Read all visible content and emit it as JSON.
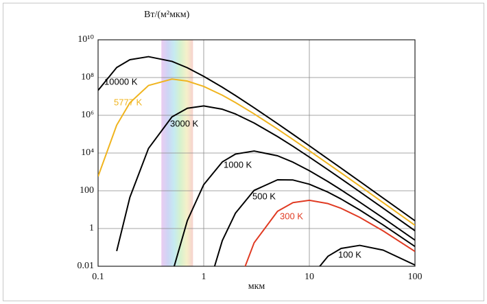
{
  "chart_data": {
    "type": "line",
    "ylabel": "Вт/(м²мкм)",
    "xlabel": "мкм",
    "x": [
      0.1,
      0.15,
      0.2,
      0.3,
      0.5,
      0.7,
      1,
      1.5,
      2,
      3,
      5,
      7,
      10,
      15,
      20,
      30,
      50,
      100
    ],
    "series": [
      {
        "name": "10000 K",
        "color": "#000000",
        "values": [
          21000000,
          340000000,
          880000000,
          1280000000,
          720000000,
          330000000,
          116000000,
          30600000,
          11100000,
          2500000,
          360000,
          98000,
          24200,
          4900,
          1570,
          314,
          41,
          2.58
        ]
      },
      {
        "name": "5777 K",
        "color": "#f0b41e",
        "values": [
          575,
          300000,
          4600000,
          38000000,
          83000000,
          65000000,
          33800000,
          11600000,
          4700000,
          1190000,
          186000,
          52000,
          13200,
          2730,
          882,
          178,
          23.5,
          1.48
        ]
      },
      {
        "name": "3000 K",
        "color": "#000000",
        "values": [
          null,
          0.064,
          45,
          17500,
          820000,
          2360000,
          3120000,
          2100000,
          1170000,
          390000,
          74600,
          22700,
          6080,
          1310,
          432,
          88.8,
          11.9,
          0.76
        ]
      },
      {
        "name": "1000 K",
        "color": "#000000",
        "values": [
          null,
          null,
          null,
          null,
          0.0038,
          2.65,
          211,
          3380,
          8800,
          12800,
          7160,
          3270,
          1160,
          306,
          111,
          25,
          3.6,
          0.242
        ]
      },
      {
        "name": "500 K",
        "color": "#000000",
        "values": [
          null,
          null,
          null,
          null,
          null,
          null,
          0.00012,
          0.23,
          6.6,
          105,
          381,
          372,
          223,
          84.9,
          36.4,
          9.6,
          1.54,
          0.112
        ]
      },
      {
        "name": "300 K",
        "color": "#e03a22",
        "values": [
          null,
          null,
          null,
          null,
          null,
          null,
          null,
          null,
          0.00045,
          0.175,
          8.2,
          23.6,
          31.2,
          21,
          11.7,
          3.9,
          0.746,
          0.061
        ]
      },
      {
        "name": "100 K",
        "color": "#000000",
        "values": [
          null,
          null,
          null,
          null,
          null,
          null,
          null,
          null,
          null,
          null,
          null,
          null,
          0.0021,
          0.0338,
          0.088,
          0.128,
          0.0716,
          0.0116
        ]
      }
    ],
    "xlim": [
      0.1,
      100
    ],
    "xticks": [
      0.1,
      1,
      10,
      100
    ],
    "xlog": true,
    "ylim": [
      0.01,
      10000000000
    ],
    "ylog": true,
    "yticks": [
      0.01,
      1,
      100,
      {
        "value": 10000,
        "label": "10⁴"
      },
      {
        "value": 1000000,
        "label": "10⁶"
      },
      {
        "value": 100000000,
        "label": "10⁸"
      },
      {
        "value": 10000000000,
        "label": "10¹⁰"
      }
    ],
    "grid": true
  }
}
